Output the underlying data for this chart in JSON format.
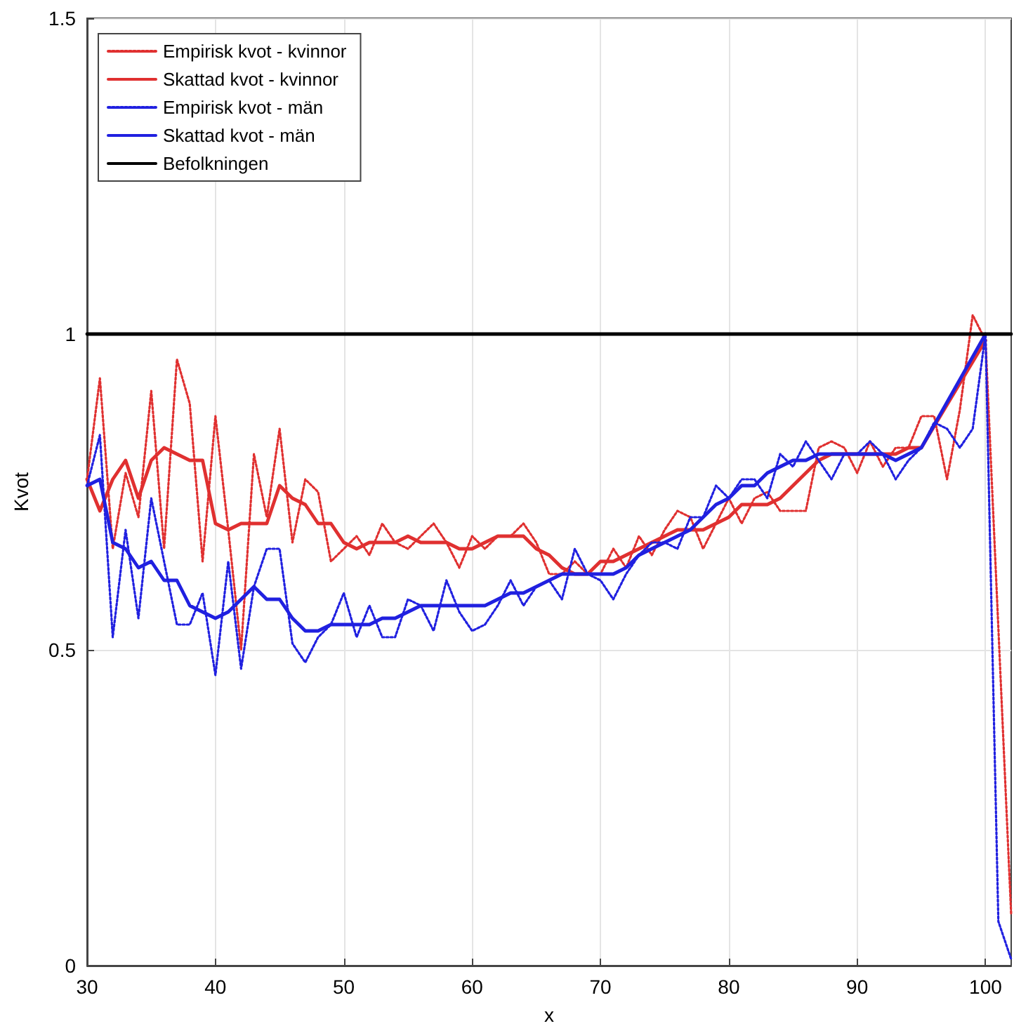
{
  "chart_data": {
    "type": "line",
    "xlabel": "x",
    "ylabel": "Kvot",
    "xlim": [
      30,
      102
    ],
    "xticks": [
      30,
      40,
      50,
      60,
      70,
      80,
      90,
      100
    ],
    "ylim": [
      0,
      1.5
    ],
    "yticks": [
      0,
      0.5,
      1,
      1.5
    ],
    "grid": true,
    "legend": "top left",
    "series": [
      {
        "name": "Empirisk kvot - kvinnor",
        "color": "#e03030",
        "line_style": "dotted",
        "x": [
          30,
          31,
          32,
          33,
          34,
          35,
          36,
          37,
          38,
          39,
          40,
          41,
          42,
          43,
          44,
          45,
          46,
          47,
          48,
          49,
          50,
          51,
          52,
          53,
          54,
          55,
          56,
          57,
          58,
          59,
          60,
          61,
          62,
          63,
          64,
          65,
          66,
          67,
          68,
          69,
          70,
          71,
          72,
          73,
          74,
          75,
          76,
          77,
          78,
          79,
          80,
          81,
          82,
          83,
          84,
          85,
          86,
          87,
          88,
          89,
          90,
          91,
          92,
          93,
          94,
          95,
          96,
          97,
          98,
          99,
          100,
          102
        ],
        "values": [
          0.77,
          0.93,
          0.66,
          0.78,
          0.71,
          0.91,
          0.66,
          0.96,
          0.89,
          0.64,
          0.87,
          0.69,
          0.5,
          0.81,
          0.71,
          0.85,
          0.67,
          0.77,
          0.75,
          0.64,
          0.66,
          0.68,
          0.65,
          0.7,
          0.67,
          0.66,
          0.68,
          0.7,
          0.67,
          0.63,
          0.68,
          0.66,
          0.68,
          0.68,
          0.7,
          0.67,
          0.62,
          0.62,
          0.64,
          0.62,
          0.62,
          0.66,
          0.63,
          0.68,
          0.65,
          0.69,
          0.72,
          0.71,
          0.66,
          0.7,
          0.74,
          0.7,
          0.74,
          0.75,
          0.72,
          0.72,
          0.72,
          0.82,
          0.83,
          0.82,
          0.78,
          0.83,
          0.79,
          0.82,
          0.82,
          0.87,
          0.87,
          0.77,
          0.88,
          1.03,
          0.99,
          0.08
        ]
      },
      {
        "name": "Skattad kvot - kvinnor",
        "color": "#e03030",
        "line_style": "solid",
        "x": [
          30,
          31,
          32,
          33,
          34,
          35,
          36,
          37,
          38,
          39,
          40,
          41,
          42,
          43,
          44,
          45,
          46,
          47,
          48,
          49,
          50,
          51,
          52,
          53,
          54,
          55,
          56,
          57,
          58,
          59,
          60,
          61,
          62,
          63,
          64,
          65,
          66,
          67,
          68,
          69,
          70,
          71,
          72,
          73,
          74,
          75,
          76,
          77,
          78,
          79,
          80,
          81,
          82,
          83,
          84,
          85,
          86,
          87,
          88,
          89,
          90,
          91,
          92,
          93,
          94,
          95,
          100
        ],
        "values": [
          0.77,
          0.72,
          0.77,
          0.8,
          0.74,
          0.8,
          0.82,
          0.81,
          0.8,
          0.8,
          0.7,
          0.69,
          0.7,
          0.7,
          0.7,
          0.76,
          0.74,
          0.73,
          0.7,
          0.7,
          0.67,
          0.66,
          0.67,
          0.67,
          0.67,
          0.68,
          0.67,
          0.67,
          0.67,
          0.66,
          0.66,
          0.67,
          0.68,
          0.68,
          0.68,
          0.66,
          0.65,
          0.63,
          0.62,
          0.62,
          0.64,
          0.64,
          0.65,
          0.66,
          0.67,
          0.68,
          0.69,
          0.69,
          0.69,
          0.7,
          0.71,
          0.73,
          0.73,
          0.73,
          0.74,
          0.76,
          0.78,
          0.8,
          0.81,
          0.81,
          0.81,
          0.81,
          0.81,
          0.81,
          0.82,
          0.82,
          0.99
        ]
      },
      {
        "name": "Empirisk kvot - män",
        "color": "#2020e0",
        "line_style": "dotted",
        "x": [
          30,
          31,
          32,
          33,
          34,
          35,
          36,
          37,
          38,
          39,
          40,
          41,
          42,
          43,
          44,
          45,
          46,
          47,
          48,
          49,
          50,
          51,
          52,
          53,
          54,
          55,
          56,
          57,
          58,
          59,
          60,
          61,
          62,
          63,
          64,
          65,
          66,
          67,
          68,
          69,
          70,
          71,
          72,
          73,
          74,
          75,
          76,
          77,
          78,
          79,
          80,
          81,
          82,
          83,
          84,
          85,
          86,
          87,
          88,
          89,
          90,
          91,
          92,
          93,
          94,
          95,
          96,
          97,
          98,
          99,
          100,
          101,
          102
        ],
        "values": [
          0.76,
          0.84,
          0.52,
          0.69,
          0.55,
          0.74,
          0.64,
          0.54,
          0.54,
          0.59,
          0.46,
          0.64,
          0.47,
          0.6,
          0.66,
          0.66,
          0.51,
          0.48,
          0.52,
          0.54,
          0.59,
          0.52,
          0.57,
          0.52,
          0.52,
          0.58,
          0.57,
          0.53,
          0.61,
          0.56,
          0.53,
          0.54,
          0.57,
          0.61,
          0.57,
          0.6,
          0.61,
          0.58,
          0.66,
          0.62,
          0.61,
          0.58,
          0.62,
          0.65,
          0.67,
          0.67,
          0.66,
          0.71,
          0.71,
          0.76,
          0.74,
          0.77,
          0.77,
          0.74,
          0.81,
          0.79,
          0.83,
          0.8,
          0.77,
          0.81,
          0.81,
          0.83,
          0.81,
          0.77,
          0.8,
          0.82,
          0.86,
          0.85,
          0.82,
          0.85,
          1.0,
          0.07,
          0.01
        ]
      },
      {
        "name": "Skattad kvot - män",
        "color": "#2020e0",
        "line_style": "solid",
        "x": [
          30,
          31,
          32,
          33,
          34,
          35,
          36,
          37,
          38,
          39,
          40,
          41,
          42,
          43,
          44,
          45,
          46,
          47,
          48,
          49,
          50,
          51,
          52,
          53,
          54,
          55,
          56,
          57,
          58,
          59,
          60,
          61,
          62,
          63,
          64,
          65,
          66,
          67,
          68,
          69,
          70,
          71,
          72,
          73,
          74,
          75,
          76,
          77,
          78,
          79,
          80,
          81,
          82,
          83,
          84,
          85,
          86,
          87,
          88,
          89,
          90,
          91,
          92,
          93,
          94,
          95,
          100
        ],
        "values": [
          0.76,
          0.77,
          0.67,
          0.66,
          0.63,
          0.64,
          0.61,
          0.61,
          0.57,
          0.56,
          0.55,
          0.56,
          0.58,
          0.6,
          0.58,
          0.58,
          0.55,
          0.53,
          0.53,
          0.54,
          0.54,
          0.54,
          0.54,
          0.55,
          0.55,
          0.56,
          0.57,
          0.57,
          0.57,
          0.57,
          0.57,
          0.57,
          0.58,
          0.59,
          0.59,
          0.6,
          0.61,
          0.62,
          0.62,
          0.62,
          0.62,
          0.62,
          0.63,
          0.65,
          0.66,
          0.67,
          0.68,
          0.69,
          0.71,
          0.73,
          0.74,
          0.76,
          0.76,
          0.78,
          0.79,
          0.8,
          0.8,
          0.81,
          0.81,
          0.81,
          0.81,
          0.81,
          0.81,
          0.8,
          0.81,
          0.82,
          1.0
        ]
      },
      {
        "name": "Befolkningen",
        "color": "#000000",
        "line_style": "solid",
        "x": [
          30,
          102
        ],
        "values": [
          1,
          1
        ]
      }
    ]
  }
}
